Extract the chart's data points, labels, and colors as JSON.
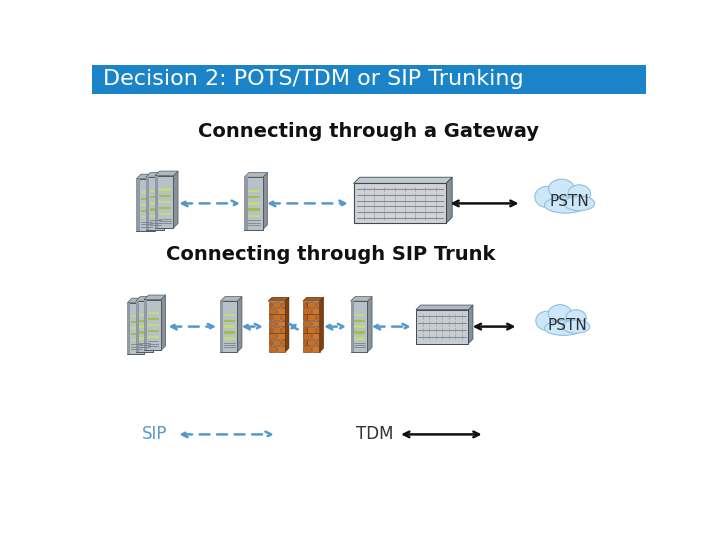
{
  "title": "Decision 2: POTS/TDM or SIP Trunking",
  "title_bg": "#1b84c8",
  "title_color": "#ffffff",
  "title_fontsize": 16,
  "bg_color": "#ffffff",
  "section1_label": "Connecting through a Gateway",
  "section2_label": "Connecting through SIP Trunk",
  "sip_label": "SIP",
  "tdm_label": "TDM",
  "pstn_label": "PSTN",
  "label_fontsize": 14,
  "sip_color": "#5599cc",
  "arrow_blue": "#5599cc",
  "arrow_black": "#111111"
}
